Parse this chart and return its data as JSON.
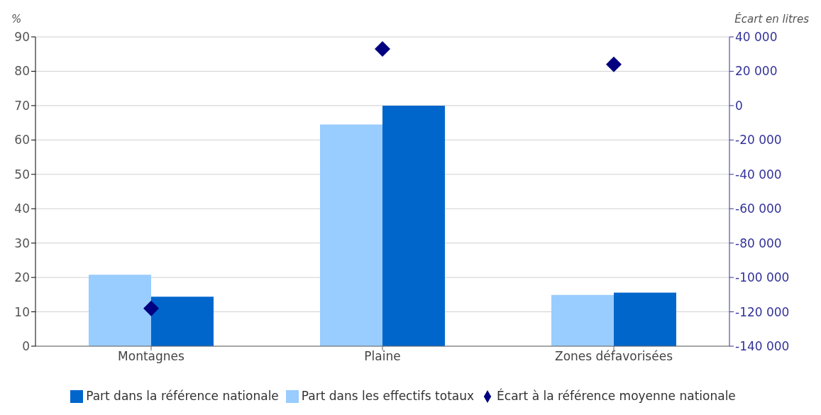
{
  "chart_data": {
    "type": "bar",
    "categories": [
      "Montagnes",
      "Plaine",
      "Zones défavorisées"
    ],
    "ylabel": "%",
    "y2label": "Écart en litres",
    "ylim": [
      0,
      90
    ],
    "yticks": [
      0,
      10,
      20,
      30,
      40,
      50,
      60,
      70,
      80,
      90
    ],
    "y2lim": [
      -140000,
      40000
    ],
    "y2ticks": [
      {
        "value": -140000,
        "label": "-140 000"
      },
      {
        "value": -120000,
        "label": "-120 000"
      },
      {
        "value": -100000,
        "label": "-100 000"
      },
      {
        "value": -80000,
        "label": "-80 000"
      },
      {
        "value": -60000,
        "label": "-60 000"
      },
      {
        "value": -40000,
        "label": "-40 000"
      },
      {
        "value": -20000,
        "label": "-20 000"
      },
      {
        "value": 0,
        "label": "0"
      },
      {
        "value": 20000,
        "label": "20 000"
      },
      {
        "value": 40000,
        "label": "40 000"
      }
    ],
    "grid": "y",
    "legend": "bottom",
    "series": [
      {
        "name": "Part dans les effectifs totaux",
        "color": "#99ccff",
        "values": [
          20.8,
          64.5,
          14.9
        ]
      },
      {
        "name": "Part dans la référence nationale",
        "color": "#0066cc",
        "values": [
          14.4,
          70,
          15.6
        ]
      },
      {
        "name": "Écart à la référence moyenne nationale",
        "type": "scatter",
        "axis": "y2",
        "marker": "diamond",
        "color": "#000080",
        "values": [
          -118000,
          33000,
          24000
        ]
      }
    ]
  }
}
